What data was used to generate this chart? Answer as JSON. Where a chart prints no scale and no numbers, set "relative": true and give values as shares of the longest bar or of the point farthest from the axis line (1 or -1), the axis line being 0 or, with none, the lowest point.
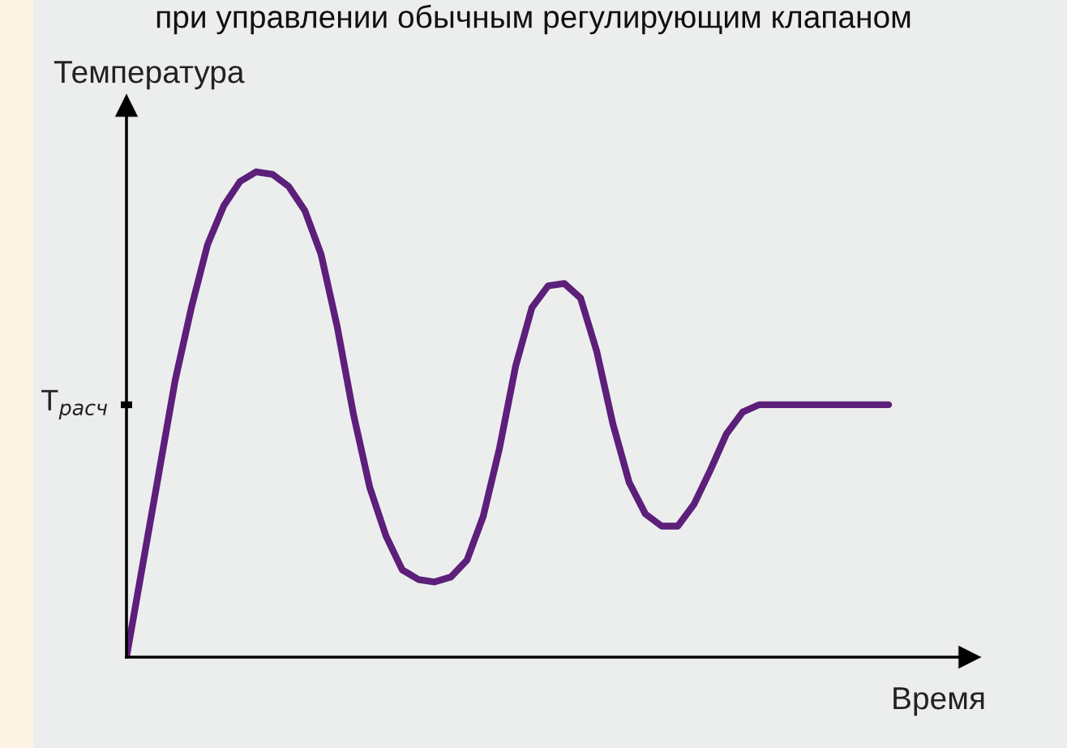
{
  "chart_data": {
    "type": "line",
    "title": "при управлении обычным регулирующим клапаном",
    "xlabel": "Время",
    "ylabel": "Температура",
    "relative": true,
    "categories": [
      null,
      null,
      null,
      null,
      null,
      null,
      null,
      null,
      null,
      null,
      null,
      null,
      null,
      null,
      null,
      null,
      null,
      null,
      null,
      null,
      null,
      null,
      null,
      null,
      null,
      null,
      null,
      null,
      null,
      null,
      null,
      null,
      null,
      null,
      null,
      null,
      null,
      null,
      null,
      null,
      null,
      null,
      null,
      null,
      null,
      null,
      null,
      null
    ],
    "series": [
      {
        "color": "#5c1f7a",
        "values": [
          0,
          0.19,
          0.38,
          0.57,
          0.72,
          0.85,
          0.93,
          0.98,
          1.0,
          0.995,
          0.97,
          0.92,
          0.83,
          0.68,
          0.5,
          0.35,
          0.25,
          0.18,
          0.16,
          0.155,
          0.165,
          0.2,
          0.29,
          0.43,
          0.6,
          0.72,
          0.765,
          0.77,
          0.74,
          0.63,
          0.48,
          0.36,
          0.295,
          0.27,
          0.27,
          0.315,
          0.385,
          0.46,
          0.505,
          0.52,
          0.52,
          0.52,
          0.52,
          0.52,
          0.52,
          0.52,
          0.52,
          0.52
        ]
      }
    ],
    "ref_lines": [
      {
        "axis": "y",
        "value": 0.52,
        "label": "T$_{расч}$"
      }
    ],
    "grid": false,
    "legend": false,
    "marker": "none",
    "line_style": "solid"
  }
}
